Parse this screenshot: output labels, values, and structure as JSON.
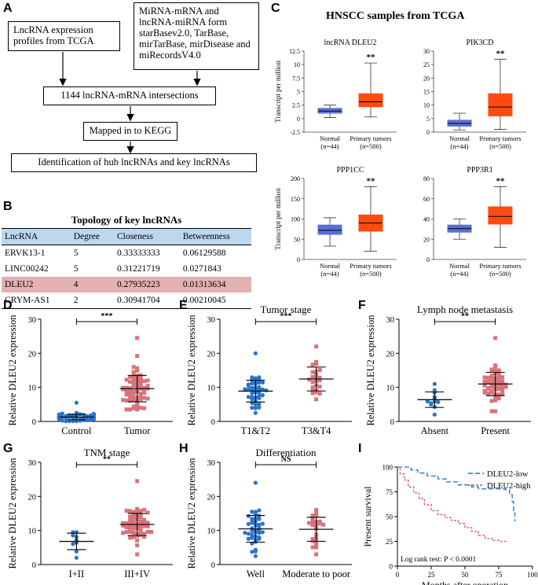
{
  "panel_letters": {
    "A": "A",
    "B": "B",
    "C": "C",
    "D": "D",
    "E": "E",
    "F": "F",
    "G": "G",
    "H": "H",
    "I": "I"
  },
  "flow": {
    "box1": "LncRNA expression profiles from TCGA",
    "box2": "MiRNA-mRNA and lncRNA-miRNA form starBasev2.0, TarBase, mirTarBase, mirDisease and miRecordsV4.0",
    "box3": "1144 lncRNA-mRNA intersections",
    "box4": "Mapped in to KEGG",
    "box5": "Identification of hub lncRNAs and key lncRNAs"
  },
  "topology": {
    "title": "Topology of key lncRNAs",
    "headers": [
      "LncRNA",
      "Degree",
      "Closeness",
      "Betweenness"
    ],
    "rows": [
      [
        "ERVK13-1",
        "5",
        "0.33333333",
        "0.06129588"
      ],
      [
        "LINC00242",
        "5",
        "0.31221719",
        "0.0271843"
      ],
      [
        "DLEU2",
        "4",
        "0.27935223",
        "0.01313634"
      ],
      [
        "CRYM-AS1",
        "2",
        "0.30941704",
        "0.00210045"
      ]
    ],
    "highlight_row": 2,
    "colors": {
      "header": "#bcd7ee",
      "highlight": "#e3b1b2"
    }
  },
  "panel_c_title": "HNSCC samples from TCGA",
  "chart_data": [
    {
      "id": "c1",
      "type": "box",
      "title": "lncRNA DLEU2",
      "ylabel": "Transcript per million",
      "yticks": [
        "-2.5",
        "0",
        "2.5",
        "5",
        "7.5",
        "10",
        "12.5"
      ],
      "ylim": [
        -2.5,
        12.5
      ],
      "categories": [
        "Normal",
        "Primary tumors"
      ],
      "counts": [
        "(n=44)",
        "(n=500)"
      ],
      "boxes": [
        {
          "min": 0.2,
          "q1": 1.0,
          "median": 1.4,
          "q3": 1.9,
          "max": 2.5,
          "color": "#5b6fd6"
        },
        {
          "min": 0.3,
          "q1": 2.2,
          "median": 3.1,
          "q3": 4.6,
          "max": 10.3,
          "color": "#ff4a10"
        }
      ],
      "sig": "**"
    },
    {
      "id": "c2",
      "type": "box",
      "title": "PIK3CD",
      "ylabel": "",
      "yticks": [
        "0",
        "5",
        "10",
        "15",
        "20",
        "25",
        "30"
      ],
      "ylim": [
        0,
        30
      ],
      "categories": [
        "Normal",
        "Primary tumors"
      ],
      "counts": [
        "(n=44)",
        "(n=500)"
      ],
      "boxes": [
        {
          "min": 0.8,
          "q1": 2.2,
          "median": 3.2,
          "q3": 4.4,
          "max": 7.0,
          "color": "#5b6fd6"
        },
        {
          "min": 1.0,
          "q1": 6.0,
          "median": 9.3,
          "q3": 14.2,
          "max": 27.0,
          "color": "#ff4a10"
        }
      ],
      "sig": "**"
    },
    {
      "id": "c3",
      "type": "box",
      "title": "PPP1CC",
      "ylabel": "Transcript per million",
      "yticks": [
        "0",
        "50",
        "100",
        "150",
        "200"
      ],
      "ylim": [
        0,
        200
      ],
      "categories": [
        "Normal",
        "Primary tumors"
      ],
      "counts": [
        "(n=44)",
        "(n=500)"
      ],
      "boxes": [
        {
          "min": 33,
          "q1": 62,
          "median": 72,
          "q3": 85,
          "max": 103,
          "color": "#5b6fd6"
        },
        {
          "min": 20,
          "q1": 70,
          "median": 90,
          "q3": 110,
          "max": 180,
          "color": "#ff4a10"
        }
      ],
      "sig": "**"
    },
    {
      "id": "c4",
      "type": "box",
      "title": "PPP3R1",
      "ylabel": "",
      "yticks": [
        "0",
        "20",
        "40",
        "60",
        "80"
      ],
      "ylim": [
        0,
        80
      ],
      "categories": [
        "Normal",
        "Primary tumors"
      ],
      "counts": [
        "(n=44)",
        "(n=500)"
      ],
      "boxes": [
        {
          "min": 20,
          "q1": 27,
          "median": 30.5,
          "q3": 34,
          "max": 40,
          "color": "#5b6fd6"
        },
        {
          "min": 12,
          "q1": 35,
          "median": 42.5,
          "q3": 52,
          "max": 72,
          "color": "#ff4a10"
        }
      ],
      "sig": "**"
    },
    {
      "id": "d",
      "type": "scatter",
      "title": "",
      "ylabel": "Relative DLEU2 expression",
      "yticks": [
        "0",
        "10",
        "20",
        "30"
      ],
      "ylim": [
        0,
        30
      ],
      "categories": [
        "Control",
        "Tumor"
      ],
      "groups": [
        {
          "color": "#2a74c9",
          "n": 66,
          "mean": 1.3,
          "sd": 0.8,
          "min": 0.1,
          "max": 5.5,
          "seed": 3
        },
        {
          "color": "#d9737a",
          "n": 66,
          "mean": 10.3,
          "sd": 4.2,
          "min": 3.5,
          "max": 24.5,
          "seed": 7
        }
      ],
      "sig": "***"
    },
    {
      "id": "e",
      "type": "scatter",
      "title": "Tumor stage",
      "ylabel": "Relative DLEU2 expression",
      "yticks": [
        "0",
        "10",
        "20",
        "30"
      ],
      "ylim": [
        0,
        30
      ],
      "categories": [
        "T1&T2",
        "T3&T4"
      ],
      "groups": [
        {
          "color": "#2a74c9",
          "n": 42,
          "mean": 8.8,
          "sd": 3.8,
          "min": 2.5,
          "max": 20.0,
          "seed": 11
        },
        {
          "color": "#d9737a",
          "n": 24,
          "mean": 13.0,
          "sd": 4.0,
          "min": 6.5,
          "max": 22.0,
          "seed": 13
        }
      ],
      "sig": "***"
    },
    {
      "id": "f",
      "type": "scatter",
      "title": "Lymph node metastasis",
      "ylabel": "Relative DLEU2 expression",
      "yticks": [
        "0",
        "10",
        "20",
        "30"
      ],
      "ylim": [
        0,
        30
      ],
      "categories": [
        "Absent",
        "Present"
      ],
      "groups": [
        {
          "color": "#2a74c9",
          "n": 12,
          "mean": 6.8,
          "sd": 2.8,
          "min": 2.0,
          "max": 11.0,
          "seed": 17
        },
        {
          "color": "#d9737a",
          "n": 54,
          "mean": 11.0,
          "sd": 4.3,
          "min": 3.0,
          "max": 24.5,
          "seed": 19
        }
      ],
      "sig": "**"
    },
    {
      "id": "g",
      "type": "scatter",
      "title": "TNM stage",
      "ylabel": "Relative DLEU2 expression",
      "yticks": [
        "0",
        "10",
        "20",
        "30"
      ],
      "ylim": [
        0,
        30
      ],
      "categories": [
        "I+II",
        "III+IV"
      ],
      "groups": [
        {
          "color": "#2a74c9",
          "n": 9,
          "mean": 6.5,
          "sd": 2.6,
          "min": 2.0,
          "max": 9.5,
          "seed": 23
        },
        {
          "color": "#d9737a",
          "n": 57,
          "mean": 11.2,
          "sd": 4.2,
          "min": 3.0,
          "max": 24.5,
          "seed": 29
        }
      ],
      "sig": "**"
    },
    {
      "id": "h",
      "type": "scatter",
      "title": "Differentiation",
      "ylabel": "Relative DLEU2 expression",
      "yticks": [
        "0",
        "10",
        "20",
        "30"
      ],
      "ylim": [
        0,
        30
      ],
      "categories": [
        "Well",
        "Moderate to poor"
      ],
      "groups": [
        {
          "color": "#2a74c9",
          "n": 42,
          "mean": 10.3,
          "sd": 4.6,
          "min": 2.5,
          "max": 24.0,
          "seed": 31
        },
        {
          "color": "#d9737a",
          "n": 24,
          "mean": 10.5,
          "sd": 4.4,
          "min": 3.0,
          "max": 16.0,
          "seed": 37
        }
      ],
      "sig": "NS"
    },
    {
      "id": "i",
      "type": "line",
      "title": "",
      "xlabel": "Months after operation",
      "ylabel": "Present survival",
      "xticks": [
        "0",
        "25",
        "50",
        "75",
        "100"
      ],
      "xlim": [
        0,
        100
      ],
      "yticks": [
        "0",
        "25",
        "50",
        "75",
        "100"
      ],
      "ylim": [
        0,
        100
      ],
      "series": [
        {
          "name": "DLEU2-low",
          "color": "#1f6fd1",
          "dash": "6,3",
          "x": [
            0,
            6,
            10,
            15,
            22,
            30,
            36,
            45,
            55,
            60,
            70,
            80,
            83,
            85,
            86,
            87
          ],
          "y": [
            100,
            100,
            97,
            94,
            91,
            88,
            85,
            82,
            80,
            78,
            78,
            77,
            72,
            65,
            55,
            45
          ]
        },
        {
          "name": "DLEU2-high",
          "color": "#d4585f",
          "dash": "3,2",
          "x": [
            0,
            2,
            5,
            8,
            12,
            16,
            20,
            25,
            30,
            35,
            40,
            45,
            50,
            55,
            60,
            65,
            70,
            75,
            80,
            82
          ],
          "y": [
            100,
            93,
            87,
            80,
            74,
            68,
            62,
            56,
            52,
            49,
            46,
            43,
            39,
            35,
            31,
            28,
            26,
            25,
            25,
            25
          ]
        }
      ],
      "annotation": "Log rank test: P < 0.0001"
    }
  ]
}
